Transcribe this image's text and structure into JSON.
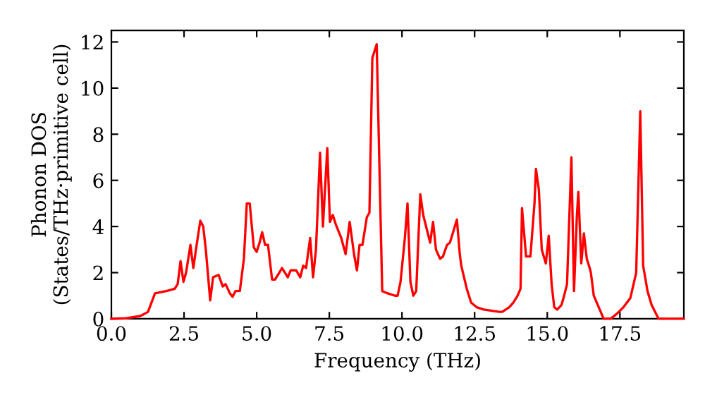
{
  "chart_data": {
    "type": "line",
    "xlabel": "Frequency (THz)",
    "ylabel": "Phonon DOS\n(States/THz·primitive cell)",
    "xlim": [
      0,
      19.7
    ],
    "ylim": [
      0,
      12.5
    ],
    "xticks": [
      {
        "value": 0,
        "label": "0.0"
      },
      2.5,
      {
        "value": 5,
        "label": "5.0"
      },
      7.5,
      {
        "value": 10,
        "label": "10.0"
      },
      12.5,
      {
        "value": 15,
        "label": "15.0"
      },
      17.5
    ],
    "yticks": [
      0,
      2,
      4,
      6,
      8,
      10,
      12
    ],
    "grid": false,
    "line_style": "solid",
    "marker": "none",
    "series": [
      {
        "color": "#ff0000",
        "x": [
          0,
          0.5,
          1.0,
          1.26,
          1.5,
          1.89,
          2.18,
          2.28,
          2.38,
          2.48,
          2.57,
          2.72,
          2.82,
          2.91,
          3.06,
          3.16,
          3.25,
          3.4,
          3.5,
          3.69,
          3.83,
          3.93,
          4.08,
          4.17,
          4.27,
          4.42,
          4.56,
          4.66,
          4.76,
          4.9,
          5.0,
          5.1,
          5.19,
          5.29,
          5.39,
          5.53,
          5.63,
          5.78,
          5.87,
          6.07,
          6.17,
          6.36,
          6.5,
          6.6,
          6.7,
          6.84,
          6.94,
          7.04,
          7.18,
          7.28,
          7.43,
          7.52,
          7.62,
          7.72,
          7.91,
          8.06,
          8.2,
          8.35,
          8.45,
          8.54,
          8.64,
          8.79,
          8.88,
          8.98,
          9.13,
          9.27,
          9.32,
          9.51,
          9.76,
          9.85,
          9.95,
          10.1,
          10.19,
          10.29,
          10.39,
          10.49,
          10.63,
          10.73,
          10.97,
          11.07,
          11.17,
          11.31,
          11.41,
          11.55,
          11.65,
          11.89,
          11.99,
          12.04,
          12.23,
          12.38,
          12.57,
          12.82,
          13.35,
          13.45,
          13.69,
          13.83,
          13.98,
          14.08,
          14.13,
          14.27,
          14.42,
          14.56,
          14.61,
          14.71,
          14.81,
          14.95,
          15.05,
          15.15,
          15.24,
          15.34,
          15.49,
          15.58,
          15.68,
          15.83,
          15.92,
          16.02,
          16.07,
          16.17,
          16.26,
          16.36,
          16.46,
          16.5,
          16.6,
          16.94,
          17.18,
          17.38,
          17.62,
          17.86,
          18.06,
          18.2,
          18.3,
          18.45,
          18.59,
          18.83,
          19.7
        ],
        "values": [
          0,
          0.02,
          0.12,
          0.3,
          1.1,
          1.2,
          1.3,
          1.5,
          2.5,
          1.6,
          2.0,
          3.2,
          2.2,
          3.0,
          4.25,
          4.0,
          3.0,
          0.8,
          1.8,
          1.9,
          1.4,
          1.5,
          1.1,
          0.95,
          1.2,
          1.2,
          2.6,
          5.0,
          5.0,
          3.1,
          2.9,
          3.3,
          3.75,
          3.2,
          3.2,
          1.7,
          1.7,
          2.0,
          2.2,
          1.8,
          2.1,
          2.1,
          1.8,
          2.3,
          2.2,
          3.5,
          1.8,
          3.0,
          7.2,
          4.0,
          7.4,
          4.2,
          4.5,
          4.1,
          3.5,
          2.8,
          4.2,
          2.8,
          2.1,
          3.2,
          3.2,
          4.4,
          4.6,
          11.3,
          11.9,
          4.0,
          1.2,
          1.1,
          1.0,
          1.0,
          1.6,
          3.5,
          5.0,
          1.6,
          1.0,
          1.2,
          5.4,
          4.5,
          3.3,
          4.2,
          3.0,
          2.6,
          2.7,
          3.2,
          3.3,
          4.3,
          2.8,
          2.3,
          1.3,
          0.7,
          0.5,
          0.4,
          0.3,
          0.3,
          0.5,
          0.7,
          1.0,
          1.3,
          4.8,
          2.7,
          2.7,
          5.0,
          6.5,
          5.6,
          3.0,
          2.4,
          3.6,
          1.5,
          0.5,
          0.4,
          0.6,
          1.0,
          1.5,
          7.0,
          1.2,
          4.5,
          5.5,
          2.4,
          3.7,
          2.6,
          2.2,
          2.0,
          1.0,
          0,
          0,
          0.2,
          0.5,
          0.9,
          2.0,
          9.0,
          2.3,
          1.2,
          0.6,
          0,
          0
        ]
      }
    ]
  }
}
